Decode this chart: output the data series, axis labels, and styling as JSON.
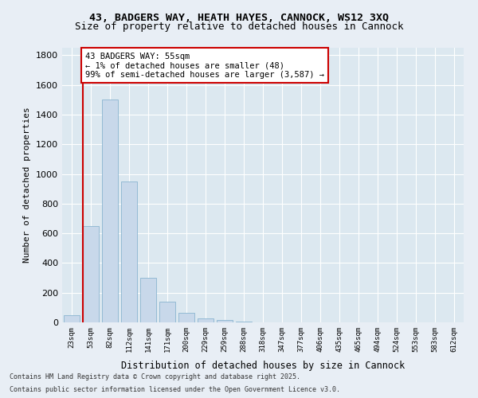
{
  "title_line1": "43, BADGERS WAY, HEATH HAYES, CANNOCK, WS12 3XQ",
  "title_line2": "Size of property relative to detached houses in Cannock",
  "xlabel": "Distribution of detached houses by size in Cannock",
  "ylabel": "Number of detached properties",
  "bins": [
    "23sqm",
    "53sqm",
    "82sqm",
    "112sqm",
    "141sqm",
    "171sqm",
    "200sqm",
    "229sqm",
    "259sqm",
    "288sqm",
    "318sqm",
    "347sqm",
    "377sqm",
    "406sqm",
    "435sqm",
    "465sqm",
    "494sqm",
    "524sqm",
    "553sqm",
    "583sqm",
    "612sqm"
  ],
  "values": [
    50,
    650,
    1500,
    950,
    300,
    140,
    65,
    25,
    15,
    5,
    2,
    1,
    1,
    0,
    0,
    0,
    0,
    0,
    0,
    0,
    0
  ],
  "bar_color": "#c8d8ea",
  "bar_edge_color": "#8ab4d0",
  "vline_color": "#cc0000",
  "vline_x": 0.575,
  "annotation_text": "43 BADGERS WAY: 55sqm\n← 1% of detached houses are smaller (48)\n99% of semi-detached houses are larger (3,587) →",
  "annotation_box_color": "#ffffff",
  "annotation_box_edge": "#cc0000",
  "ylim": [
    0,
    1850
  ],
  "yticks": [
    0,
    200,
    400,
    600,
    800,
    1000,
    1200,
    1400,
    1600,
    1800
  ],
  "footer_line1": "Contains HM Land Registry data © Crown copyright and database right 2025.",
  "footer_line2": "Contains public sector information licensed under the Open Government Licence v3.0.",
  "bg_color": "#e8eef5",
  "plot_bg_color": "#dce8f0"
}
